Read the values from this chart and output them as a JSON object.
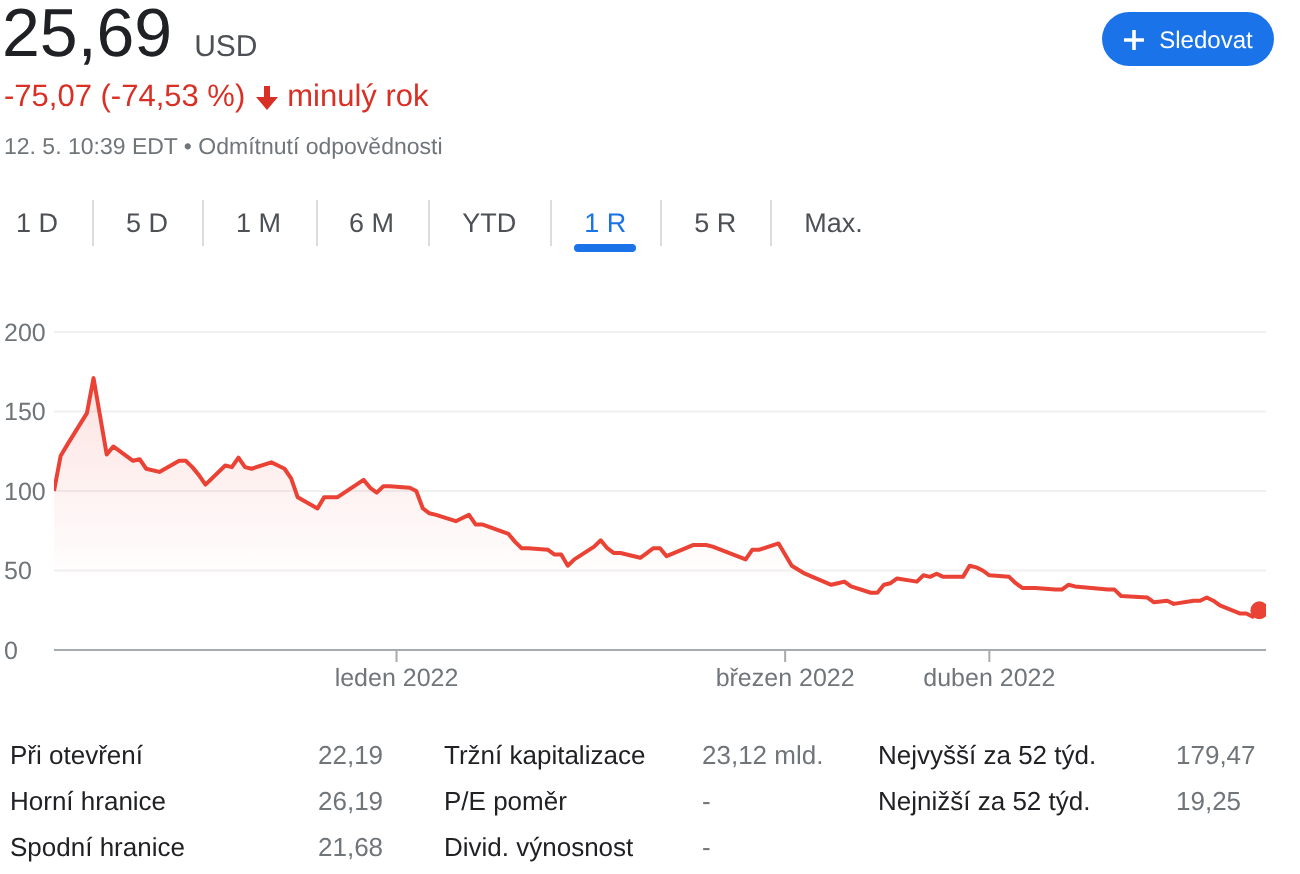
{
  "chart_data": {
    "type": "area",
    "title": "25,69",
    "subtitle": "-75,07 (-74,53 %)",
    "annotations": [
      "USD",
      "minulý rok",
      "12. 5. 10:39 EDT • Odmítnutí odpovědnosti",
      "Sledovat",
      "1 D",
      "5 D",
      "1 M",
      "6 M",
      "YTD",
      "1 R",
      "5 R",
      "Max.",
      "Při otevření",
      "22,19",
      "Tržní kapitalizace",
      "23,12 mld.",
      "Nejvyšší za 52 týd.",
      "179,47",
      "Horní hranice",
      "26,19",
      "P/E poměr",
      "-",
      "Nejnižší za 52 týd.",
      "19,25",
      "Spodní hranice",
      "21,68",
      "Divid. výnosnost",
      "-"
    ],
    "x": [
      "2021-11-10",
      "2021-11-11",
      "2021-11-12",
      "2021-11-15",
      "2021-11-16",
      "2021-11-17",
      "2021-11-18",
      "2021-11-19",
      "2021-11-22",
      "2021-11-23",
      "2021-11-24",
      "2021-11-26",
      "2021-11-29",
      "2021-11-30",
      "2021-12-01",
      "2021-12-02",
      "2021-12-03",
      "2021-12-06",
      "2021-12-07",
      "2021-12-08",
      "2021-12-09",
      "2021-12-10",
      "2021-12-13",
      "2021-12-14",
      "2021-12-15",
      "2021-12-16",
      "2021-12-17",
      "2021-12-20",
      "2021-12-21",
      "2021-12-22",
      "2021-12-23",
      "2021-12-27",
      "2021-12-28",
      "2021-12-29",
      "2021-12-30",
      "2021-12-31",
      "2022-01-03",
      "2022-01-04",
      "2022-01-05",
      "2022-01-06",
      "2022-01-07",
      "2022-01-10",
      "2022-01-11",
      "2022-01-12",
      "2022-01-13",
      "2022-01-14",
      "2022-01-18",
      "2022-01-19",
      "2022-01-20",
      "2022-01-21",
      "2022-01-24",
      "2022-01-25",
      "2022-01-26",
      "2022-01-27",
      "2022-01-28",
      "2022-01-31",
      "2022-02-01",
      "2022-02-02",
      "2022-02-03",
      "2022-02-04",
      "2022-02-07",
      "2022-02-08",
      "2022-02-09",
      "2022-02-10",
      "2022-02-11",
      "2022-02-15",
      "2022-02-17",
      "2022-02-18",
      "2022-02-23",
      "2022-02-24",
      "2022-02-25",
      "2022-02-28",
      "2022-03-02",
      "2022-03-04",
      "2022-03-08",
      "2022-03-09",
      "2022-03-10",
      "2022-03-11",
      "2022-03-14",
      "2022-03-15",
      "2022-03-16",
      "2022-03-17",
      "2022-03-18",
      "2022-03-21",
      "2022-03-22",
      "2022-03-23",
      "2022-03-24",
      "2022-03-25",
      "2022-03-28",
      "2022-03-29",
      "2022-03-30",
      "2022-03-31",
      "2022-04-01",
      "2022-04-04",
      "2022-04-05",
      "2022-04-06",
      "2022-04-08",
      "2022-04-11",
      "2022-04-12",
      "2022-04-13",
      "2022-04-14",
      "2022-04-19",
      "2022-04-20",
      "2022-04-21",
      "2022-04-25",
      "2022-04-26",
      "2022-04-28",
      "2022-04-29",
      "2022-05-02",
      "2022-05-03",
      "2022-05-04",
      "2022-05-05",
      "2022-05-06",
      "2022-05-09",
      "2022-05-10",
      "2022-05-11",
      "2022-05-12"
    ],
    "series": [
      {
        "color": "#ea4335",
        "values": [
          100,
          122,
          129,
          149,
          171,
          147,
          123,
          128,
          119,
          120,
          114,
          112,
          119,
          119,
          115,
          110,
          104,
          116,
          115,
          121,
          115,
          114,
          118,
          116,
          114,
          108,
          96,
          89,
          96,
          96,
          96,
          107,
          102,
          99,
          103,
          103,
          102,
          100,
          89,
          86,
          85,
          81,
          83,
          85,
          79,
          79,
          73,
          68,
          64,
          64,
          63,
          60,
          60,
          53,
          57,
          65,
          69,
          64,
          61,
          61,
          58,
          61,
          64,
          64,
          59,
          66,
          66,
          65,
          57,
          63,
          63,
          67,
          53,
          48,
          41,
          42,
          43,
          40,
          36,
          36,
          41,
          42,
          45,
          43,
          47,
          46,
          48,
          46,
          46,
          53,
          52,
          50,
          47,
          46,
          42,
          39,
          39,
          38,
          38,
          41,
          40,
          38,
          38,
          34,
          33,
          30,
          31,
          29,
          31,
          31,
          33,
          31,
          28,
          23,
          23,
          21,
          25
        ]
      },
      {
        "type": "scatter",
        "color": "#ea4335",
        "x": [
          "2022-05-12"
        ],
        "values": [
          25
        ]
      }
    ],
    "xlim": [
      "2021-11-10",
      "2022-05-13"
    ],
    "xticks": [
      {
        "value": "2022-01-01",
        "label": "leden 2022"
      },
      {
        "value": "2022-03-01",
        "label": "březen 2022"
      },
      {
        "value": "2022-04-01",
        "label": "duben 2022"
      }
    ],
    "ylim": [
      0,
      200
    ],
    "yticks": [
      0,
      50,
      100,
      150,
      200
    ],
    "grid": "y"
  }
}
